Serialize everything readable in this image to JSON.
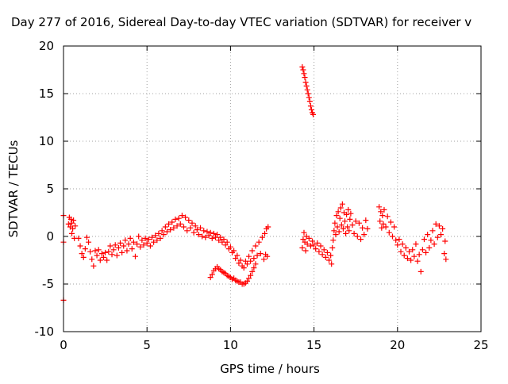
{
  "chart_data": {
    "type": "scatter",
    "title": "Day 277 of 2016, Sidereal Day-to-day VTEC variation (SDTVAR) for receiver v",
    "xlabel": "GPS time / hours",
    "ylabel": "SDTVAR / TECUs",
    "xlim": [
      0,
      25
    ],
    "ylim": [
      -10,
      20
    ],
    "xticks": [
      "0",
      "5",
      "10",
      "15",
      "20",
      "25"
    ],
    "yticks": [
      "-10",
      "-5",
      "0",
      "5",
      "10",
      "15",
      "20"
    ],
    "grid": true,
    "marker": "+",
    "marker_color": "#ff0000",
    "series": [
      {
        "points": [
          [
            0.0,
            2.2
          ],
          [
            0.0,
            -0.6
          ],
          [
            0.0,
            -6.7
          ],
          [
            0.3,
            1.3
          ],
          [
            0.35,
            2.0
          ],
          [
            0.4,
            1.0
          ],
          [
            0.45,
            1.8
          ],
          [
            0.5,
            0.3
          ],
          [
            0.5,
            1.4
          ],
          [
            0.55,
            0.8
          ],
          [
            0.6,
            1.7
          ],
          [
            0.65,
            -0.2
          ],
          [
            0.7,
            1.1
          ],
          [
            0.9,
            -0.2
          ],
          [
            1.0,
            -1.0
          ],
          [
            1.1,
            -1.8
          ],
          [
            1.2,
            -2.2
          ],
          [
            1.3,
            -1.3
          ],
          [
            1.4,
            -0.1
          ],
          [
            1.5,
            -0.6
          ],
          [
            1.6,
            -1.6
          ],
          [
            1.7,
            -2.4
          ],
          [
            1.8,
            -3.1
          ],
          [
            1.9,
            -1.5
          ],
          [
            2.0,
            -2.0
          ],
          [
            2.1,
            -1.4
          ],
          [
            2.2,
            -2.5
          ],
          [
            2.3,
            -1.8
          ],
          [
            2.4,
            -2.2
          ],
          [
            2.5,
            -1.7
          ],
          [
            2.6,
            -2.5
          ],
          [
            2.7,
            -1.6
          ],
          [
            2.8,
            -1.0
          ],
          [
            2.9,
            -1.9
          ],
          [
            3.0,
            -1.4
          ],
          [
            3.1,
            -0.9
          ],
          [
            3.2,
            -2.0
          ],
          [
            3.3,
            -1.2
          ],
          [
            3.4,
            -0.7
          ],
          [
            3.5,
            -1.7
          ],
          [
            3.6,
            -1.0
          ],
          [
            3.7,
            -0.4
          ],
          [
            3.8,
            -1.5
          ],
          [
            3.9,
            -0.8
          ],
          [
            4.0,
            -0.2
          ],
          [
            4.1,
            -1.3
          ],
          [
            4.2,
            -0.6
          ],
          [
            4.3,
            -2.1
          ],
          [
            4.4,
            -0.8
          ],
          [
            4.5,
            0.0
          ],
          [
            4.6,
            -1.1
          ],
          [
            4.7,
            -0.4
          ],
          [
            4.8,
            -0.9
          ],
          [
            4.9,
            -0.2
          ],
          [
            5.0,
            -0.7
          ],
          [
            5.1,
            -0.3
          ],
          [
            5.2,
            -1.0
          ],
          [
            5.3,
            -0.1
          ],
          [
            5.4,
            -0.6
          ],
          [
            5.5,
            0.1
          ],
          [
            5.6,
            -0.4
          ],
          [
            5.7,
            0.3
          ],
          [
            5.8,
            -0.2
          ],
          [
            5.9,
            0.6
          ],
          [
            6.0,
            0.2
          ],
          [
            6.1,
            1.0
          ],
          [
            6.2,
            0.5
          ],
          [
            6.3,
            1.3
          ],
          [
            6.4,
            0.7
          ],
          [
            6.5,
            1.5
          ],
          [
            6.6,
            0.9
          ],
          [
            6.7,
            1.8
          ],
          [
            6.8,
            1.1
          ],
          [
            6.9,
            1.9
          ],
          [
            7.0,
            1.3
          ],
          [
            7.1,
            2.2
          ],
          [
            7.2,
            1.0
          ],
          [
            7.3,
            2.0
          ],
          [
            7.4,
            0.6
          ],
          [
            7.5,
            1.7
          ],
          [
            7.6,
            0.9
          ],
          [
            7.7,
            1.4
          ],
          [
            7.8,
            0.4
          ],
          [
            7.9,
            1.1
          ],
          [
            8.0,
            0.7
          ],
          [
            8.1,
            0.2
          ],
          [
            8.2,
            0.9
          ],
          [
            8.3,
            0.0
          ],
          [
            8.4,
            0.6
          ],
          [
            8.5,
            -0.1
          ],
          [
            8.6,
            0.5
          ],
          [
            8.7,
            0.1
          ],
          [
            8.8,
            0.4
          ],
          [
            8.9,
            -0.2
          ],
          [
            9.0,
            0.3
          ],
          [
            9.1,
            -0.1
          ],
          [
            9.2,
            0.2
          ],
          [
            9.3,
            -0.4
          ],
          [
            9.4,
            -0.1
          ],
          [
            9.5,
            -0.6
          ],
          [
            9.6,
            -0.3
          ],
          [
            9.7,
            -0.9
          ],
          [
            9.8,
            -0.6
          ],
          [
            9.9,
            -1.3
          ],
          [
            10.0,
            -1.1
          ],
          [
            10.1,
            -1.7
          ],
          [
            10.2,
            -1.5
          ],
          [
            10.3,
            -2.3
          ],
          [
            10.4,
            -2.0
          ],
          [
            10.5,
            -2.8
          ],
          [
            10.6,
            -2.5
          ],
          [
            10.7,
            -3.1
          ],
          [
            10.8,
            -3.3
          ],
          [
            10.9,
            -2.6
          ],
          [
            11.0,
            -2.9
          ],
          [
            11.1,
            -2.1
          ],
          [
            11.2,
            -2.6
          ],
          [
            11.3,
            -1.5
          ],
          [
            11.4,
            -2.3
          ],
          [
            11.5,
            -1.0
          ],
          [
            11.6,
            -2.0
          ],
          [
            11.7,
            -0.6
          ],
          [
            11.8,
            -1.8
          ],
          [
            11.9,
            -0.1
          ],
          [
            12.0,
            -2.4
          ],
          [
            12.05,
            0.3
          ],
          [
            12.1,
            -1.9
          ],
          [
            12.15,
            0.8
          ],
          [
            12.2,
            -2.1
          ],
          [
            12.25,
            1.0
          ],
          [
            8.8,
            -4.3
          ],
          [
            8.9,
            -4.0
          ],
          [
            9.0,
            -3.6
          ],
          [
            9.1,
            -3.4
          ],
          [
            9.2,
            -3.2
          ],
          [
            9.3,
            -3.4
          ],
          [
            9.4,
            -3.5
          ],
          [
            9.5,
            -3.7
          ],
          [
            9.6,
            -3.8
          ],
          [
            9.7,
            -3.9
          ],
          [
            9.8,
            -4.1
          ],
          [
            9.9,
            -4.2
          ],
          [
            10.0,
            -4.3
          ],
          [
            10.1,
            -4.5
          ],
          [
            10.2,
            -4.4
          ],
          [
            10.3,
            -4.6
          ],
          [
            10.4,
            -4.7
          ],
          [
            10.5,
            -4.8
          ],
          [
            10.6,
            -4.8
          ],
          [
            10.7,
            -5.0
          ],
          [
            10.8,
            -5.0
          ],
          [
            10.9,
            -4.9
          ],
          [
            11.0,
            -4.7
          ],
          [
            11.1,
            -4.4
          ],
          [
            11.2,
            -4.1
          ],
          [
            11.3,
            -3.7
          ],
          [
            11.4,
            -3.3
          ],
          [
            11.5,
            -2.9
          ],
          [
            14.3,
            17.8
          ],
          [
            14.35,
            17.5
          ],
          [
            14.4,
            17.1
          ],
          [
            14.45,
            16.7
          ],
          [
            14.5,
            16.2
          ],
          [
            14.55,
            15.8
          ],
          [
            14.6,
            15.4
          ],
          [
            14.65,
            15.0
          ],
          [
            14.7,
            14.6
          ],
          [
            14.75,
            14.2
          ],
          [
            14.8,
            13.7
          ],
          [
            14.85,
            13.3
          ],
          [
            14.9,
            13.0
          ],
          [
            14.95,
            12.8
          ],
          [
            14.3,
            -1.2
          ],
          [
            14.35,
            -0.3
          ],
          [
            14.4,
            0.4
          ],
          [
            14.45,
            -0.6
          ],
          [
            14.5,
            -1.5
          ],
          [
            14.55,
            0.0
          ],
          [
            14.6,
            -0.8
          ],
          [
            14.7,
            -0.2
          ],
          [
            14.8,
            -1.0
          ],
          [
            14.9,
            -0.5
          ],
          [
            15.0,
            -0.9
          ],
          [
            15.1,
            -1.3
          ],
          [
            15.2,
            -0.7
          ],
          [
            15.3,
            -1.6
          ],
          [
            15.4,
            -1.0
          ],
          [
            15.5,
            -1.9
          ],
          [
            15.6,
            -1.4
          ],
          [
            15.7,
            -2.2
          ],
          [
            15.8,
            -1.7
          ],
          [
            15.9,
            -2.5
          ],
          [
            16.0,
            -2.0
          ],
          [
            16.05,
            -2.9
          ],
          [
            16.1,
            -1.2
          ],
          [
            16.15,
            -0.4
          ],
          [
            16.2,
            0.6
          ],
          [
            16.25,
            1.4
          ],
          [
            16.3,
            0.2
          ],
          [
            16.35,
            2.2
          ],
          [
            16.4,
            1.0
          ],
          [
            16.45,
            2.6
          ],
          [
            16.5,
            0.5
          ],
          [
            16.55,
            1.9
          ],
          [
            16.6,
            3.0
          ],
          [
            16.65,
            1.2
          ],
          [
            16.7,
            3.4
          ],
          [
            16.75,
            0.8
          ],
          [
            16.8,
            2.5
          ],
          [
            16.85,
            1.6
          ],
          [
            16.9,
            0.3
          ],
          [
            16.95,
            2.3
          ],
          [
            17.0,
            1.0
          ],
          [
            17.05,
            2.8
          ],
          [
            17.1,
            0.6
          ],
          [
            17.15,
            1.8
          ],
          [
            17.2,
            2.4
          ],
          [
            17.3,
            1.2
          ],
          [
            17.4,
            0.3
          ],
          [
            17.5,
            1.6
          ],
          [
            17.6,
            0.0
          ],
          [
            17.7,
            1.4
          ],
          [
            17.8,
            -0.3
          ],
          [
            17.9,
            0.9
          ],
          [
            18.0,
            0.2
          ],
          [
            18.1,
            1.7
          ],
          [
            18.2,
            0.8
          ],
          [
            18.9,
            3.1
          ],
          [
            18.95,
            1.6
          ],
          [
            19.0,
            2.6
          ],
          [
            19.05,
            0.9
          ],
          [
            19.1,
            2.2
          ],
          [
            19.15,
            1.3
          ],
          [
            19.2,
            2.8
          ],
          [
            19.3,
            1.0
          ],
          [
            19.4,
            2.1
          ],
          [
            19.5,
            0.4
          ],
          [
            19.6,
            1.5
          ],
          [
            19.7,
            0.0
          ],
          [
            19.8,
            1.0
          ],
          [
            19.9,
            -0.4
          ],
          [
            20.0,
            -0.9
          ],
          [
            20.1,
            -0.3
          ],
          [
            20.2,
            -1.6
          ],
          [
            20.3,
            -0.8
          ],
          [
            20.4,
            -2.0
          ],
          [
            20.5,
            -1.2
          ],
          [
            20.6,
            -2.3
          ],
          [
            20.7,
            -1.6
          ],
          [
            20.8,
            -2.5
          ],
          [
            20.9,
            -1.4
          ],
          [
            21.0,
            -2.1
          ],
          [
            21.1,
            -0.8
          ],
          [
            21.2,
            -2.6
          ],
          [
            21.3,
            -1.9
          ],
          [
            21.4,
            -3.7
          ],
          [
            21.5,
            -1.4
          ],
          [
            21.6,
            -0.3
          ],
          [
            21.7,
            -1.7
          ],
          [
            21.8,
            0.2
          ],
          [
            21.9,
            -1.2
          ],
          [
            22.0,
            -0.4
          ],
          [
            22.1,
            0.6
          ],
          [
            22.2,
            -0.8
          ],
          [
            22.3,
            1.3
          ],
          [
            22.4,
            -0.1
          ],
          [
            22.5,
            1.1
          ],
          [
            22.6,
            0.2
          ],
          [
            22.7,
            0.8
          ],
          [
            22.8,
            -1.8
          ],
          [
            22.85,
            -0.5
          ],
          [
            22.9,
            -2.4
          ]
        ]
      }
    ]
  }
}
